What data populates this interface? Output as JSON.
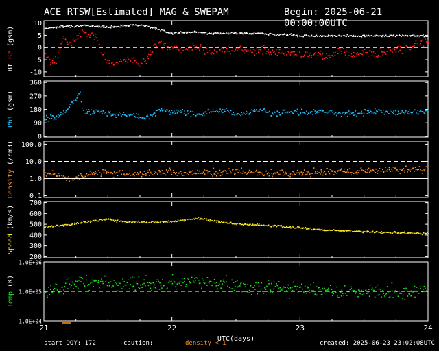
{
  "header": {
    "title": "ACE RTSW[Estimated] MAG & SWEPAM",
    "begin": "Begin: 2025-06-21 00:00:00UTC"
  },
  "footer": {
    "start": "start DOY: 172",
    "caution": "caution:",
    "density_note": "density < 1",
    "created": "created: 2025-06-23 23:02:08UTC"
  },
  "colors": {
    "bt": "#ffffff",
    "bz": "#ff2020",
    "phi": "#20c0ff",
    "density": "#ff9020",
    "speed": "#ffee20",
    "temp": "#20e020",
    "axis": "#ffffff",
    "background": "#000000"
  },
  "chart_data": {
    "type": "scatter",
    "x": {
      "label": "UTC(days)",
      "range": [
        21,
        24
      ],
      "tick_labels": [
        "21",
        "22",
        "23",
        "24"
      ]
    },
    "panels": [
      {
        "id": "mag",
        "ylabel_parts": [
          "Bt",
          "Bz",
          "(gsm)"
        ],
        "scale": "linear",
        "ylim": [
          -12,
          11
        ],
        "ticks": [
          10,
          5,
          0,
          -5,
          -10
        ],
        "tick_labels": [
          "10",
          "5",
          "0",
          "-5",
          "-10"
        ],
        "dashed_ref": [
          0
        ],
        "series": [
          {
            "name": "Bt",
            "color": "#ffffff",
            "x": [
              21.0,
              21.1,
              21.2,
              21.3,
              21.4,
              21.5,
              21.6,
              21.7,
              21.8,
              21.9,
              22.0,
              22.1,
              22.2,
              22.3,
              22.4,
              22.5,
              22.6,
              22.7,
              22.8,
              22.9,
              23.0,
              23.2,
              23.4,
              23.6,
              23.8,
              23.95
            ],
            "y": [
              8,
              8.5,
              9,
              9,
              9,
              8.5,
              9,
              9.5,
              9,
              7.5,
              6,
              6.5,
              6.5,
              6,
              6,
              6,
              6,
              6,
              5.5,
              5.5,
              5,
              5,
              5,
              5,
              5,
              5
            ],
            "jitter": 0.6
          },
          {
            "name": "Bz",
            "color": "#ff2020",
            "x": [
              21.0,
              21.05,
              21.1,
              21.15,
              21.2,
              21.3,
              21.4,
              21.45,
              21.5,
              21.55,
              21.6,
              21.65,
              21.7,
              21.75,
              21.8,
              21.85,
              21.9,
              22.0,
              22.1,
              22.2,
              22.3,
              22.4,
              22.5,
              22.6,
              22.7,
              22.8,
              22.9,
              23.0,
              23.1,
              23.2,
              23.3,
              23.4,
              23.5,
              23.6,
              23.7,
              23.8,
              23.9,
              23.97
            ],
            "y": [
              -2,
              -6,
              -4,
              5,
              2,
              6,
              5,
              -2,
              -6,
              -7,
              -6,
              -5,
              -5,
              -7,
              -5,
              0,
              2,
              0,
              -1,
              1,
              -2,
              -1,
              0,
              -2,
              -1,
              -2,
              -1,
              -3,
              -2,
              -4,
              -1,
              -3,
              -2,
              -3,
              -1,
              -1,
              2,
              3
            ],
            "jitter": 2.5
          }
        ]
      },
      {
        "id": "phi",
        "ylabel_parts": [
          "Phi",
          "(gsm)"
        ],
        "scale": "linear",
        "ylim": [
          -5,
          370
        ],
        "ticks": [
          360,
          270,
          180,
          90,
          0
        ],
        "tick_labels": [
          "360",
          "270",
          "180",
          "90",
          "0"
        ],
        "dashed_ref": [],
        "series": [
          {
            "name": "Phi",
            "color": "#20c0ff",
            "x": [
              21.0,
              21.08,
              21.15,
              21.22,
              21.28,
              21.3,
              21.4,
              21.5,
              21.6,
              21.7,
              21.8,
              21.85,
              21.9,
              22.0,
              22.1,
              22.2,
              22.3,
              22.4,
              22.5,
              22.6,
              22.7,
              22.8,
              22.9,
              23.0,
              23.2,
              23.4,
              23.6,
              23.8,
              23.95
            ],
            "y": [
              120,
              130,
              160,
              230,
              280,
              170,
              165,
              160,
              150,
              140,
              130,
              150,
              180,
              170,
              160,
              150,
              170,
              180,
              150,
              165,
              180,
              150,
              170,
              160,
              170,
              155,
              170,
              160,
              170
            ],
            "jitter": 28
          }
        ]
      },
      {
        "id": "density",
        "ylabel_parts": [
          "Density",
          "(/cm3)"
        ],
        "scale": "log",
        "ylim": [
          0.08,
          150
        ],
        "ticks": [
          100,
          10,
          1,
          0.1
        ],
        "tick_labels": [
          "100.0",
          "10.0",
          "1.0",
          "0.1"
        ],
        "dashed_ref": [
          10
        ],
        "solid_ref": [
          1
        ],
        "series": [
          {
            "name": "Density",
            "color": "#ff9020",
            "x": [
              21.0,
              21.1,
              21.2,
              21.3,
              21.4,
              21.6,
              21.8,
              22.0,
              22.2,
              22.4,
              22.6,
              22.8,
              23.0,
              23.2,
              23.4,
              23.6,
              23.8,
              23.95
            ],
            "y": [
              2.5,
              1.8,
              0.9,
              1.5,
              2.5,
              2.0,
              2.2,
              2.5,
              2.2,
              2.8,
              2.5,
              2.3,
              2.0,
              2.8,
              2.5,
              3.0,
              3.5,
              3.5
            ],
            "jitter": 0.15
          }
        ]
      },
      {
        "id": "speed",
        "ylabel_parts": [
          "Speed",
          "(km/s)"
        ],
        "scale": "linear",
        "ylim": [
          190,
          710
        ],
        "ticks": [
          700,
          600,
          500,
          400,
          300,
          200
        ],
        "tick_labels": [
          "700",
          "600",
          "500",
          "400",
          "300",
          "200"
        ],
        "dashed_ref": [],
        "series": [
          {
            "name": "Speed",
            "color": "#ffee20",
            "x": [
              21.0,
              21.1,
              21.2,
              21.3,
              21.4,
              21.5,
              21.6,
              21.8,
              22.0,
              22.2,
              22.4,
              22.6,
              22.8,
              23.0,
              23.2,
              23.4,
              23.6,
              23.8,
              23.95
            ],
            "y": [
              480,
              490,
              500,
              520,
              540,
              550,
              530,
              520,
              530,
              560,
              520,
              500,
              490,
              470,
              450,
              440,
              430,
              425,
              420
            ],
            "jitter": 14
          }
        ]
      },
      {
        "id": "temp",
        "ylabel_parts": [
          "Temp",
          "(K)"
        ],
        "scale": "log",
        "ylim": [
          10000,
          1000000
        ],
        "ticks": [
          1000000,
          100000,
          10000
        ],
        "tick_labels": [
          "1.0E+06",
          "1.0E+05",
          "1.0E+04"
        ],
        "dashed_ref": [
          100000
        ],
        "series": [
          {
            "name": "Temp",
            "color": "#20e020",
            "x": [
              21.0,
              21.1,
              21.2,
              21.3,
              21.4,
              21.6,
              21.8,
              22.0,
              22.2,
              22.4,
              22.6,
              22.8,
              23.0,
              23.2,
              23.4,
              23.6,
              23.8,
              23.95
            ],
            "y": [
              100000,
              120000,
              180000,
              250000,
              220000,
              200000,
              180000,
              200000,
              220000,
              200000,
              150000,
              140000,
              130000,
              120000,
              110000,
              100000,
              90000,
              110000
            ],
            "jitter": 0.18
          }
        ]
      }
    ]
  }
}
